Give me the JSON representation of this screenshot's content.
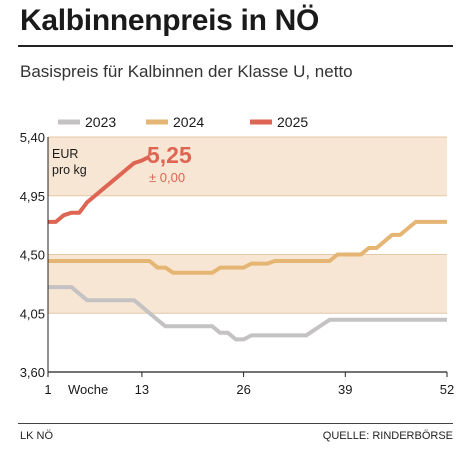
{
  "title": "Kalbinnenpreis in NÖ",
  "subtitle": "Basispreis für Kalbinnen der Klasse U, netto",
  "footer": {
    "left": "LK NÖ",
    "right": "QUELLE: RINDERBÖRSE"
  },
  "chart_data": {
    "type": "line",
    "unit_label": [
      "EUR",
      "pro kg"
    ],
    "x_label": "Woche",
    "x_ticks": [
      "1",
      "13",
      "26",
      "39",
      "52"
    ],
    "x_range": [
      1,
      52
    ],
    "y_ticks": [
      "5,40",
      "4,95",
      "4,50",
      "4,05",
      "3,60"
    ],
    "y_range": [
      3.6,
      5.4
    ],
    "shaded_bands": [
      [
        4.95,
        5.4
      ],
      [
        4.05,
        4.5
      ]
    ],
    "highlight": {
      "value": "5,25",
      "change": "± 0,00"
    },
    "legend_position": "top",
    "series": [
      {
        "name": "2023",
        "color": "#c4c2c2",
        "points": [
          [
            1,
            4.25
          ],
          [
            4,
            4.25
          ],
          [
            5,
            4.2
          ],
          [
            6,
            4.15
          ],
          [
            7,
            4.15
          ],
          [
            8,
            4.15
          ],
          [
            9,
            4.15
          ],
          [
            10,
            4.15
          ],
          [
            11,
            4.15
          ],
          [
            12,
            4.15
          ],
          [
            13,
            4.1
          ],
          [
            14,
            4.05
          ],
          [
            15,
            4.0
          ],
          [
            16,
            3.95
          ],
          [
            17,
            3.95
          ],
          [
            18,
            3.95
          ],
          [
            19,
            3.95
          ],
          [
            20,
            3.95
          ],
          [
            21,
            3.95
          ],
          [
            22,
            3.95
          ],
          [
            23,
            3.9
          ],
          [
            24,
            3.9
          ],
          [
            25,
            3.85
          ],
          [
            26,
            3.85
          ],
          [
            27,
            3.88
          ],
          [
            28,
            3.88
          ],
          [
            29,
            3.88
          ],
          [
            30,
            3.88
          ],
          [
            31,
            3.88
          ],
          [
            32,
            3.88
          ],
          [
            33,
            3.88
          ],
          [
            34,
            3.88
          ],
          [
            35,
            3.92
          ],
          [
            36,
            3.96
          ],
          [
            37,
            4.0
          ],
          [
            38,
            4.0
          ],
          [
            39,
            4.0
          ],
          [
            40,
            4.0
          ],
          [
            41,
            4.0
          ],
          [
            42,
            4.0
          ],
          [
            43,
            4.0
          ],
          [
            44,
            4.0
          ],
          [
            45,
            4.0
          ],
          [
            46,
            4.0
          ],
          [
            47,
            4.0
          ],
          [
            48,
            4.0
          ],
          [
            49,
            4.0
          ],
          [
            50,
            4.0
          ],
          [
            51,
            4.0
          ],
          [
            52,
            4.0
          ]
        ]
      },
      {
        "name": "2024",
        "color": "#e5b573",
        "points": [
          [
            1,
            4.45
          ],
          [
            2,
            4.45
          ],
          [
            3,
            4.45
          ],
          [
            4,
            4.45
          ],
          [
            5,
            4.45
          ],
          [
            6,
            4.45
          ],
          [
            7,
            4.45
          ],
          [
            8,
            4.45
          ],
          [
            9,
            4.45
          ],
          [
            10,
            4.45
          ],
          [
            11,
            4.45
          ],
          [
            12,
            4.45
          ],
          [
            13,
            4.45
          ],
          [
            14,
            4.45
          ],
          [
            15,
            4.4
          ],
          [
            16,
            4.4
          ],
          [
            17,
            4.36
          ],
          [
            18,
            4.36
          ],
          [
            19,
            4.36
          ],
          [
            20,
            4.36
          ],
          [
            21,
            4.36
          ],
          [
            22,
            4.36
          ],
          [
            23,
            4.4
          ],
          [
            24,
            4.4
          ],
          [
            25,
            4.4
          ],
          [
            26,
            4.4
          ],
          [
            27,
            4.43
          ],
          [
            28,
            4.43
          ],
          [
            29,
            4.43
          ],
          [
            30,
            4.45
          ],
          [
            31,
            4.45
          ],
          [
            32,
            4.45
          ],
          [
            33,
            4.45
          ],
          [
            34,
            4.45
          ],
          [
            35,
            4.45
          ],
          [
            36,
            4.45
          ],
          [
            37,
            4.45
          ],
          [
            38,
            4.5
          ],
          [
            39,
            4.5
          ],
          [
            40,
            4.5
          ],
          [
            41,
            4.5
          ],
          [
            42,
            4.55
          ],
          [
            43,
            4.55
          ],
          [
            44,
            4.6
          ],
          [
            45,
            4.65
          ],
          [
            46,
            4.65
          ],
          [
            47,
            4.7
          ],
          [
            48,
            4.75
          ],
          [
            49,
            4.75
          ],
          [
            50,
            4.75
          ],
          [
            51,
            4.75
          ],
          [
            52,
            4.75
          ]
        ]
      },
      {
        "name": "2025",
        "color": "#de6553",
        "points": [
          [
            1,
            4.75
          ],
          [
            2,
            4.75
          ],
          [
            3,
            4.8
          ],
          [
            4,
            4.82
          ],
          [
            5,
            4.82
          ],
          [
            6,
            4.9
          ],
          [
            7,
            4.95
          ],
          [
            8,
            5.0
          ],
          [
            9,
            5.05
          ],
          [
            10,
            5.1
          ],
          [
            11,
            5.15
          ],
          [
            12,
            5.2
          ],
          [
            13,
            5.22
          ],
          [
            14,
            5.25
          ]
        ]
      }
    ]
  }
}
